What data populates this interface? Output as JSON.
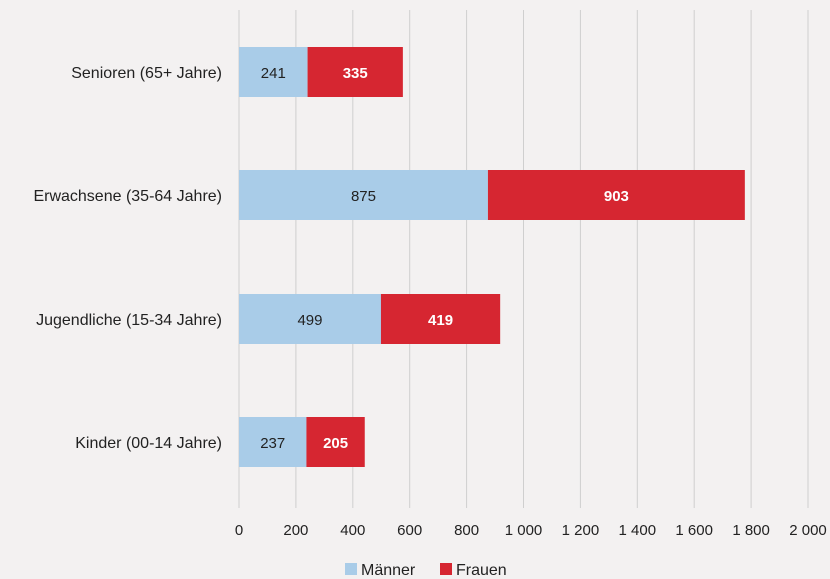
{
  "chart_data": {
    "type": "bar",
    "orientation": "horizontal",
    "stacked": true,
    "categories": [
      "Senioren (65+ Jahre)",
      "Erwachsene (35-64 Jahre)",
      "Jugendliche (15-34 Jahre)",
      "Kinder (00-14 Jahre)"
    ],
    "series": [
      {
        "name": "Männer",
        "values": [
          241,
          875,
          499,
          237
        ],
        "color": "#a9cce8",
        "label_style": "light"
      },
      {
        "name": "Frauen",
        "values": [
          335,
          903,
          419,
          205
        ],
        "color": "#d62631",
        "label_style": "dark"
      }
    ],
    "x_ticks": [
      0,
      200,
      400,
      600,
      800,
      1000,
      1200,
      1400,
      1600,
      1800,
      2000
    ],
    "x_tick_labels": [
      "0",
      "200",
      "400",
      "600",
      "800",
      "1 000",
      "1 200",
      "1 400",
      "1 600",
      "1 800",
      "2 000"
    ],
    "xlim": [
      0,
      2000
    ],
    "grid": "vertical",
    "legend_position": "bottom-center",
    "title": "",
    "xlabel": "",
    "ylabel": ""
  }
}
